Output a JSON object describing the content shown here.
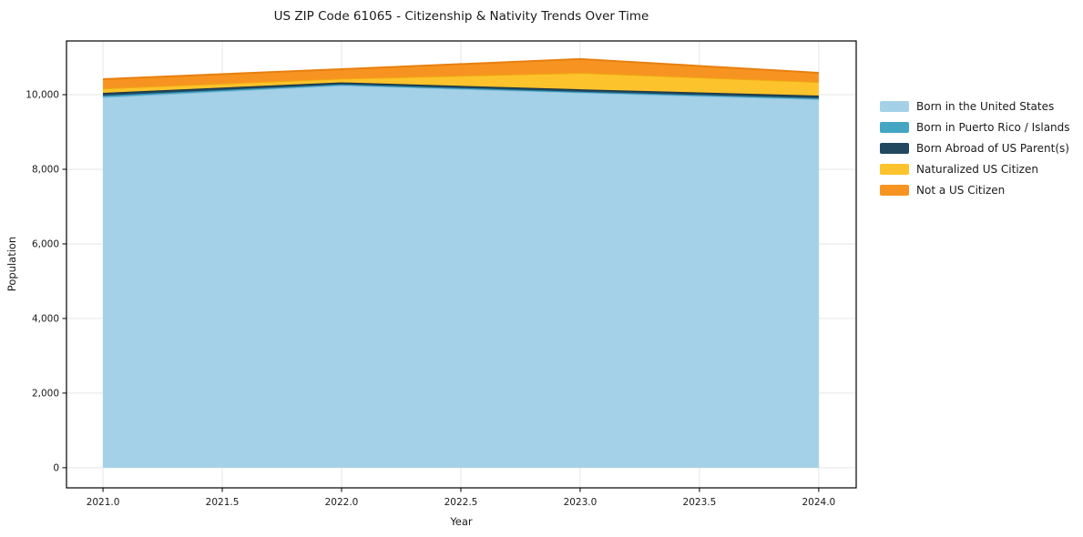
{
  "title": "US ZIP Code 61065 - Citizenship & Nativity Trends Over Time",
  "chart_data": {
    "type": "area",
    "stacked": true,
    "title": "US ZIP Code 61065 - Citizenship & Nativity Trends Over Time",
    "xlabel": "Year",
    "ylabel": "Population",
    "x": [
      2021,
      2022,
      2023,
      2024
    ],
    "series": [
      {
        "name": "Born in the United States",
        "values": [
          9935,
          10255,
          10060,
          9880
        ],
        "color": "#A4D1E7",
        "edge_color": "#7CB9D8"
      },
      {
        "name": "Born in Puerto Rico / Islands",
        "values": [
          40,
          20,
          20,
          25
        ],
        "color": "#44A5C4",
        "edge_color": "#2F93B4"
      },
      {
        "name": "Born Abroad of US Parent(s)",
        "values": [
          75,
          55,
          65,
          70
        ],
        "color": "#21485E",
        "edge_color": "#173646"
      },
      {
        "name": "Naturalized US Citizen",
        "values": [
          115,
          100,
          440,
          365
        ],
        "color": "#FCC32C",
        "edge_color": "#F0A912"
      },
      {
        "name": "Not a US Citizen",
        "values": [
          250,
          255,
          370,
          245
        ],
        "color": "#F79421",
        "edge_color": "#E87F0F"
      }
    ],
    "totals": [
      10415,
      10685,
      10955,
      10585
    ],
    "xlim": [
      2020.847,
      2024.157
    ],
    "ylim": [
      -540,
      11440
    ],
    "xtick_values": [
      2021.0,
      2021.5,
      2022.0,
      2022.5,
      2023.0,
      2023.5,
      2024.0
    ],
    "xtick_labels": [
      "2021.0",
      "2021.5",
      "2022.0",
      "2022.5",
      "2023.0",
      "2023.5",
      "2024.0"
    ],
    "ytick_values": [
      0,
      2000,
      4000,
      6000,
      8000,
      10000
    ],
    "ytick_labels": [
      "0",
      "2,000",
      "4,000",
      "6,000",
      "8,000",
      "10,000"
    ],
    "grid": true,
    "grid_color": "#E6E6E6",
    "frame_color": "#000000",
    "text_color": "#1a1a1a",
    "background": "#FFFFFF",
    "legend_position": "right"
  }
}
